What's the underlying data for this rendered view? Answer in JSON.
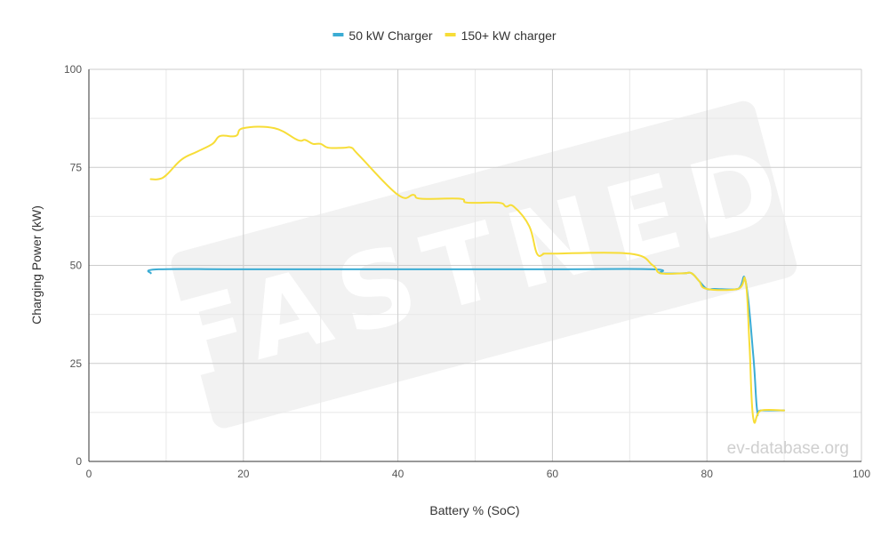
{
  "watermark": "FASTNED",
  "credit": "ev-database.org",
  "legend_position": "top",
  "colors": {
    "series_50": "#3bacd4",
    "series_150": "#f7dd37",
    "grid": "#cccccc",
    "grid_minor": "#e8e8e8",
    "watermark_bg": "#f2f2f2"
  },
  "chart_data": {
    "type": "line",
    "title": "",
    "xlabel": "Battery % (SoC)",
    "ylabel": "Charging Power (kW)",
    "xlim": [
      0,
      100
    ],
    "ylim": [
      0,
      100
    ],
    "xticks": [
      0,
      20,
      40,
      60,
      80,
      100
    ],
    "yticks": [
      0,
      25,
      50,
      75,
      100
    ],
    "grid": true,
    "series": [
      {
        "name": "50 kW Charger",
        "color": "#3bacd4",
        "points": [
          [
            8,
            48
          ],
          [
            9,
            49
          ],
          [
            20,
            49
          ],
          [
            40,
            49
          ],
          [
            60,
            49
          ],
          [
            73,
            49
          ],
          [
            74,
            48
          ],
          [
            77,
            48
          ],
          [
            78,
            48
          ],
          [
            79,
            46
          ],
          [
            80,
            44
          ],
          [
            81,
            44
          ],
          [
            84,
            44
          ],
          [
            85,
            46
          ],
          [
            86,
            27
          ],
          [
            86.5,
            13
          ],
          [
            87,
            13
          ],
          [
            90,
            13
          ]
        ]
      },
      {
        "name": "150+ kW charger",
        "color": "#f7dd37",
        "points": [
          [
            8,
            72
          ],
          [
            9,
            72
          ],
          [
            10,
            73
          ],
          [
            12,
            77
          ],
          [
            14,
            79
          ],
          [
            16,
            81
          ],
          [
            17,
            83
          ],
          [
            19,
            83
          ],
          [
            20,
            85
          ],
          [
            24,
            85
          ],
          [
            27,
            82
          ],
          [
            28,
            82
          ],
          [
            29,
            81
          ],
          [
            30,
            81
          ],
          [
            31,
            80
          ],
          [
            33,
            80
          ],
          [
            34,
            80
          ],
          [
            35,
            78
          ],
          [
            40,
            68
          ],
          [
            42,
            68
          ],
          [
            43,
            67
          ],
          [
            48,
            67
          ],
          [
            49,
            66
          ],
          [
            53,
            66
          ],
          [
            54,
            65
          ],
          [
            55,
            65
          ],
          [
            57,
            60
          ],
          [
            58,
            53
          ],
          [
            59,
            53
          ],
          [
            60,
            53
          ],
          [
            70,
            53
          ],
          [
            73,
            50
          ],
          [
            74,
            48
          ],
          [
            77,
            48
          ],
          [
            78,
            48
          ],
          [
            79,
            46
          ],
          [
            80,
            44
          ],
          [
            84,
            44
          ],
          [
            85,
            46
          ],
          [
            85.5,
            30
          ],
          [
            86,
            11
          ],
          [
            87,
            13
          ],
          [
            90,
            13
          ]
        ]
      }
    ]
  }
}
